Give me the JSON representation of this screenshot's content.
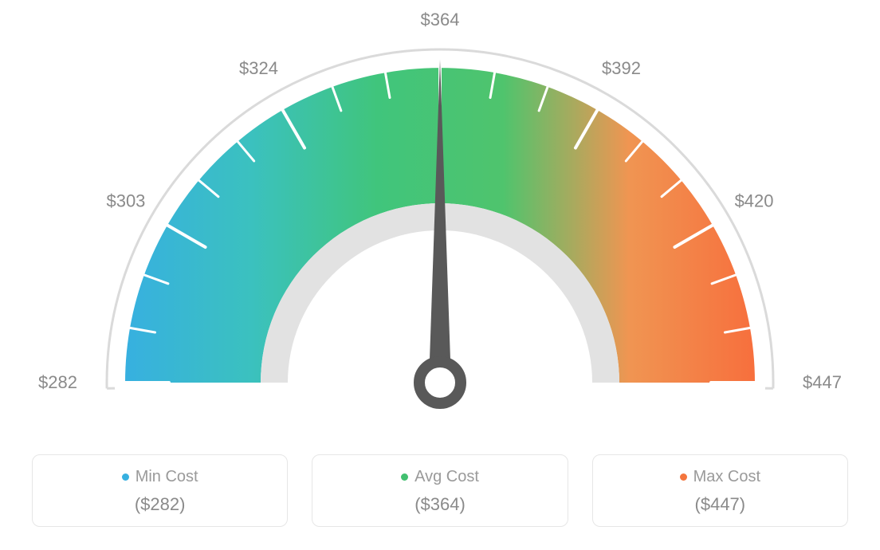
{
  "gauge": {
    "type": "gauge",
    "tick_values": [
      282,
      303,
      324,
      364,
      392,
      420,
      447
    ],
    "tick_labels": [
      "$282",
      "$303",
      "$324",
      "$364",
      "$392",
      "$420",
      "$447"
    ],
    "needle_value": 364,
    "range_min": 282,
    "range_max": 447,
    "start_angle_deg": 180,
    "end_angle_deg": 0,
    "minor_ticks_between": 2,
    "colors_gradient": [
      "#37b0e0",
      "#3bc1bf",
      "#40c57c",
      "#4fc46d",
      "#f09552",
      "#f76f3d"
    ],
    "outer_arc_color": "#dadada",
    "inner_ring_color": "#e2e2e2",
    "tick_minor_color": "#ffffff",
    "tick_major_color": "#ffffff",
    "tick_label_color": "#8a8a8a",
    "tick_label_fontsize": 22,
    "needle_color": "#595959",
    "needle_hub_fill": "#ffffff",
    "needle_hub_stroke": "#595959",
    "background_color": "#ffffff",
    "outer_radius": 400,
    "inner_radius": 205,
    "arc_band_outer": 395,
    "arc_band_inner": 225,
    "outer_line_width": 3,
    "inner_ring_width": 34
  },
  "legend": {
    "items": [
      {
        "label": "Min Cost",
        "value": "($282)",
        "dot_color": "#37b0e0"
      },
      {
        "label": "Avg Cost",
        "value": "($364)",
        "dot_color": "#42c070"
      },
      {
        "label": "Max Cost",
        "value": "($447)",
        "dot_color": "#f4753d"
      }
    ],
    "card_border_color": "#e6e6e6",
    "card_border_radius": 10,
    "label_color": "#9a9a9a",
    "label_fontsize": 20,
    "value_color": "#8a8a8a",
    "value_fontsize": 22
  }
}
